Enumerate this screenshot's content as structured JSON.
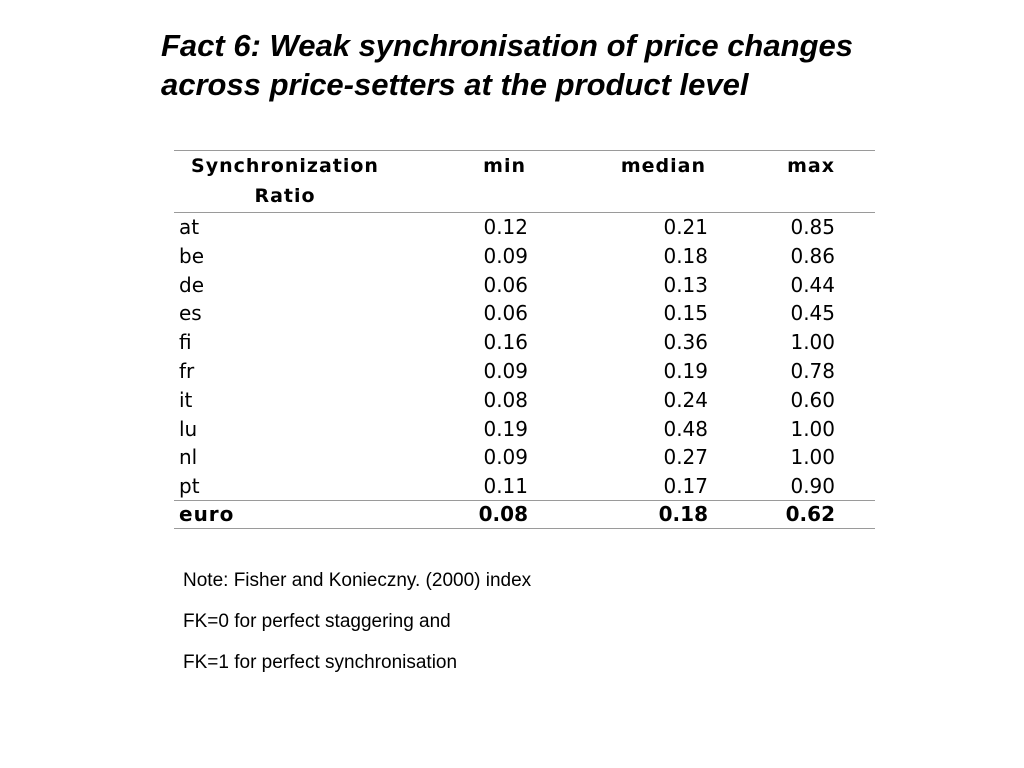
{
  "title": {
    "line1": "Fact 6: Weak synchronisation of price changes",
    "line2": "across price-setters at the product level"
  },
  "table": {
    "headers": {
      "label_line1": "Synchronization",
      "label_line2": "Ratio",
      "min": "min",
      "median": "median",
      "max": "max"
    },
    "rows": [
      {
        "country": "at",
        "min": "0.12",
        "median": "0.21",
        "max": "0.85"
      },
      {
        "country": "be",
        "min": "0.09",
        "median": "0.18",
        "max": "0.86"
      },
      {
        "country": "de",
        "min": "0.06",
        "median": "0.13",
        "max": "0.44"
      },
      {
        "country": "es",
        "min": "0.06",
        "median": "0.15",
        "max": "0.45"
      },
      {
        "country": "fi",
        "min": "0.16",
        "median": "0.36",
        "max": "1.00"
      },
      {
        "country": "fr",
        "min": "0.09",
        "median": "0.19",
        "max": "0.78"
      },
      {
        "country": "it",
        "min": "0.08",
        "median": "0.24",
        "max": "0.60"
      },
      {
        "country": "lu",
        "min": "0.19",
        "median": "0.48",
        "max": "1.00"
      },
      {
        "country": "nl",
        "min": "0.09",
        "median": "0.27",
        "max": "1.00"
      },
      {
        "country": "pt",
        "min": "0.11",
        "median": "0.17",
        "max": "0.90"
      }
    ],
    "total": {
      "country": "euro",
      "min": "0.08",
      "median": "0.18",
      "max": "0.62"
    }
  },
  "notes": [
    "Note: Fisher and Konieczny. (2000) index",
    "FK=0 for perfect staggering and",
    "FK=1 for perfect synchronisation"
  ]
}
